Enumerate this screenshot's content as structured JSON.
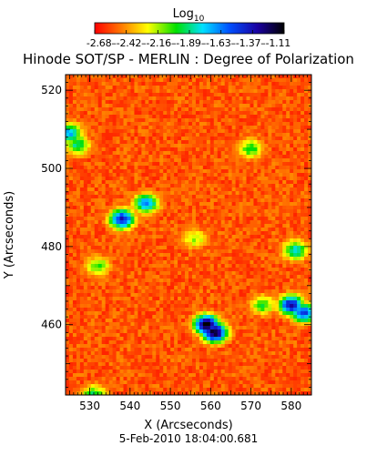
{
  "chart_data": {
    "type": "heatmap",
    "colorbar": {
      "label_base": "Log",
      "label_sub": "10",
      "ticks": [
        "-2.68",
        "-2.42",
        "-2.16",
        "-1.89",
        "-1.63",
        "-1.37",
        "-1.11"
      ],
      "range": [
        -2.68,
        -1.11
      ],
      "colors": [
        "#ff0000",
        "#ff7800",
        "#ffff00",
        "#00e000",
        "#00e0ff",
        "#0050ff",
        "#1a00a0",
        "#000000"
      ]
    },
    "title": "Hinode SOT/SP - MERLIN : Degree of Polarization",
    "xlabel": "X (Arcseconds)",
    "ylabel": "Y (Arcseconds)",
    "xlim": [
      524,
      585
    ],
    "ylim": [
      442,
      524
    ],
    "xticks": [
      530,
      540,
      550,
      560,
      570,
      580
    ],
    "yticks": [
      460,
      480,
      500,
      520
    ],
    "footer": "5-Feb-2010 18:04:00.681",
    "grid": false,
    "features": [
      {
        "x": 538,
        "y": 487,
        "value": -1.45
      },
      {
        "x": 544,
        "y": 491,
        "value": -1.7
      },
      {
        "x": 559,
        "y": 460,
        "value": -1.15
      },
      {
        "x": 561,
        "y": 458,
        "value": -1.2
      },
      {
        "x": 580,
        "y": 465,
        "value": -1.4
      },
      {
        "x": 583,
        "y": 463,
        "value": -1.55
      },
      {
        "x": 525,
        "y": 509,
        "value": -1.75
      },
      {
        "x": 527,
        "y": 506,
        "value": -1.95
      },
      {
        "x": 532,
        "y": 475,
        "value": -2.1
      },
      {
        "x": 570,
        "y": 505,
        "value": -2.05
      },
      {
        "x": 581,
        "y": 479,
        "value": -1.85
      },
      {
        "x": 573,
        "y": 465,
        "value": -2.05
      },
      {
        "x": 531,
        "y": 442,
        "value": -2.0
      },
      {
        "x": 556,
        "y": 482,
        "value": -2.2
      }
    ]
  }
}
